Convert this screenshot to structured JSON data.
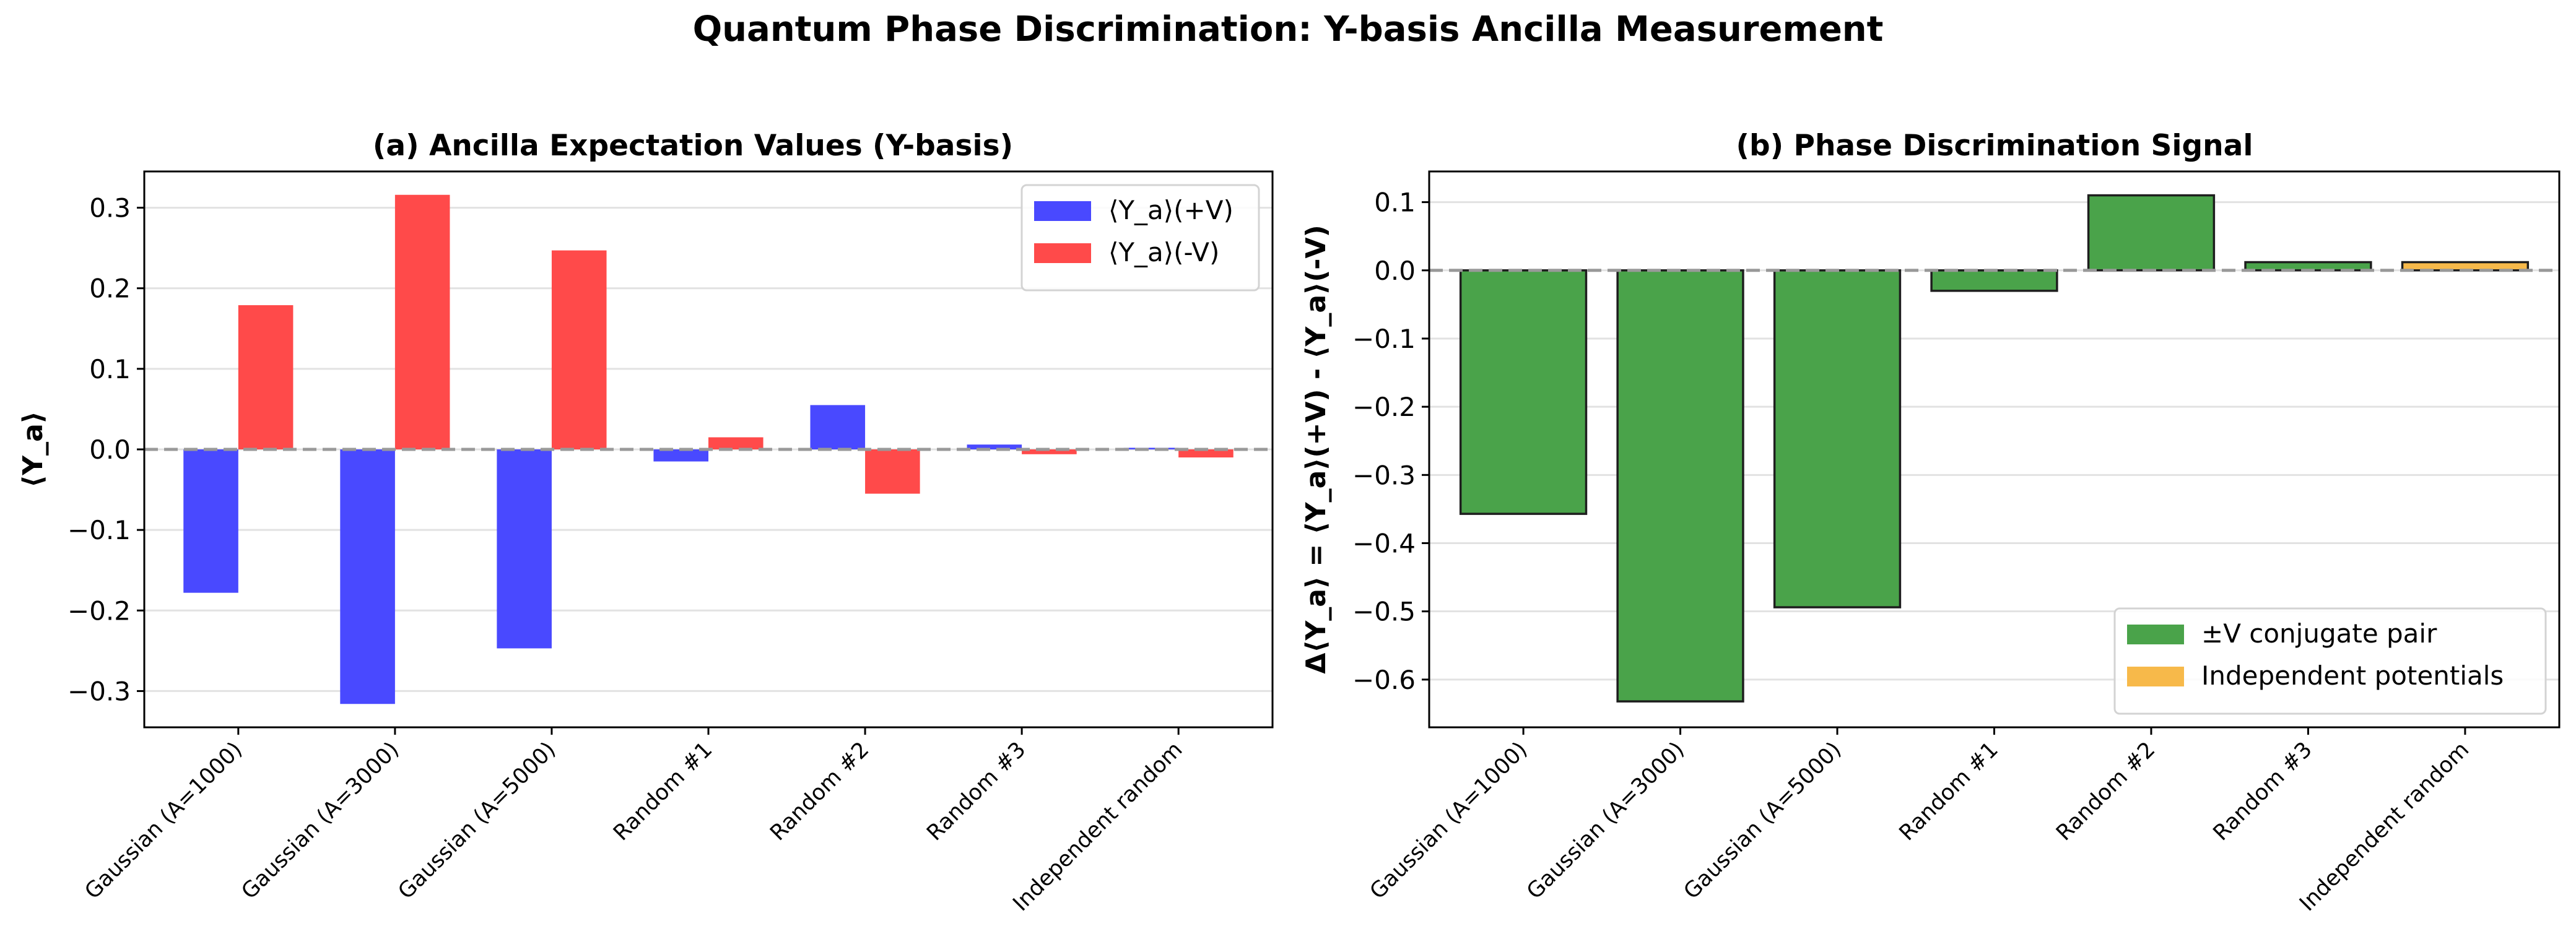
{
  "figure_title": "Quantum Phase Discrimination: Y-basis Ancilla Measurement",
  "chart_data": [
    {
      "type": "bar",
      "title": "(a) Ancilla Expectation Values (Y-basis)",
      "xlabel": "",
      "ylabel": "⟨Y_a⟩",
      "ylim": [
        -0.345,
        0.345
      ],
      "yticks": [
        -0.3,
        -0.2,
        -0.1,
        0.0,
        0.1,
        0.2,
        0.3
      ],
      "ytick_labels": [
        "−0.3",
        "−0.2",
        "−0.1",
        "0.0",
        "0.1",
        "0.2",
        "0.3"
      ],
      "grid": "y",
      "legend_position": "top-right",
      "categories": [
        "Gaussian (A=1000)",
        "Gaussian (A=3000)",
        "Gaussian (A=5000)",
        "Random #1",
        "Random #2",
        "Random #3",
        "Independent random"
      ],
      "series": [
        {
          "name": "⟨Y_a⟩(+V)",
          "color": "#4949ff",
          "values": [
            -0.178,
            -0.316,
            -0.247,
            -0.015,
            0.055,
            0.006,
            0.002
          ]
        },
        {
          "name": "⟨Y_a⟩(-V)",
          "color": "#ff4a4a",
          "values": [
            0.179,
            0.316,
            0.247,
            0.015,
            -0.055,
            -0.006,
            -0.01
          ]
        }
      ]
    },
    {
      "type": "bar",
      "title": "(b) Phase Discrimination Signal",
      "xlabel": "",
      "ylabel": "Δ⟨Y_a⟩ = ⟨Y_a⟩(+V) - ⟨Y_a⟩(-V)",
      "ylim": [
        -0.67,
        0.145
      ],
      "yticks": [
        -0.6,
        -0.5,
        -0.4,
        -0.3,
        -0.2,
        -0.1,
        0.0,
        0.1
      ],
      "ytick_labels": [
        "−0.6",
        "−0.5",
        "−0.4",
        "−0.3",
        "−0.2",
        "−0.1",
        "0.0",
        "0.1"
      ],
      "grid": "y",
      "legend_position": "bottom-right",
      "categories": [
        "Gaussian (A=1000)",
        "Gaussian (A=3000)",
        "Gaussian (A=5000)",
        "Random #1",
        "Random #2",
        "Random #3",
        "Independent random"
      ],
      "values": [
        -0.357,
        -0.632,
        -0.494,
        -0.03,
        0.11,
        0.012,
        0.012
      ],
      "bar_groups": [
        "pair",
        "pair",
        "pair",
        "pair",
        "pair",
        "pair",
        "independent"
      ],
      "legend": [
        {
          "name": "±V conjugate pair",
          "color": "#4aa34a"
        },
        {
          "name": "Independent potentials",
          "color": "#f7b94a"
        }
      ]
    }
  ]
}
